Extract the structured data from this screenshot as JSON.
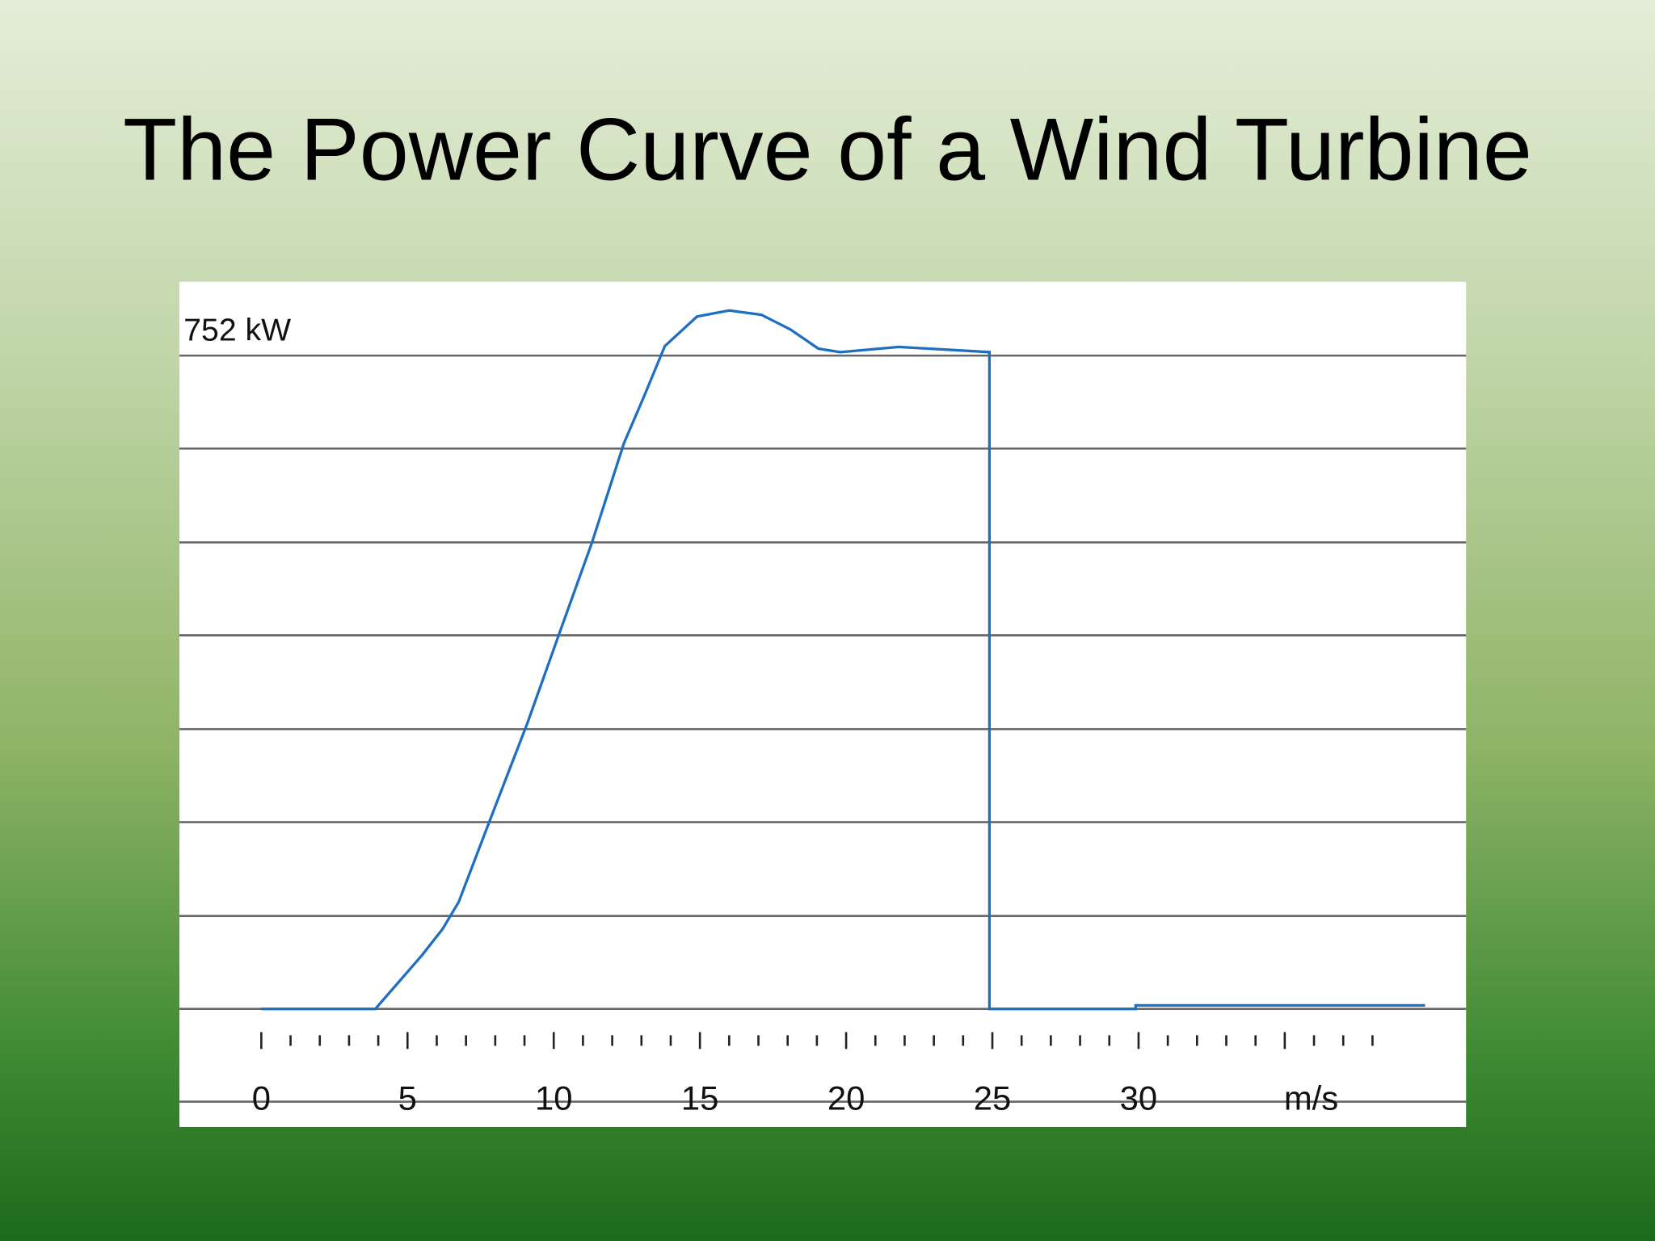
{
  "chart_data": {
    "type": "line",
    "title": "The Power Curve of a Wind Turbine",
    "x": [
      0,
      3.9,
      5.5,
      6.2,
      6.75,
      7.85,
      9.1,
      10.2,
      11.3,
      12.4,
      13.1,
      13.8,
      14.9,
      16,
      17.1,
      18.1,
      19.05,
      19.8,
      21.8,
      24.9,
      24.9,
      29.9,
      29.9,
      39.8
    ],
    "values": [
      0,
      0,
      62,
      92,
      123,
      220,
      329,
      433,
      536,
      651,
      706,
      763,
      797,
      804,
      799,
      782,
      760,
      756,
      762,
      756,
      0,
      0,
      4,
      4
    ],
    "color": "#1f6fc0",
    "xlim": [
      -2.8,
      41.2
    ],
    "ylim": [
      -136,
      837
    ],
    "xticks": [
      0,
      5,
      10,
      15,
      20,
      25,
      30,
      {
        "value": 35,
        "label": "m/s"
      }
    ],
    "xminor_ticks": [
      1,
      2,
      3,
      4,
      6,
      7,
      8,
      9,
      11,
      12,
      13,
      14,
      16,
      17,
      18,
      19,
      21,
      22,
      23,
      24,
      26,
      27,
      28,
      29,
      31,
      32,
      33,
      34,
      36,
      37,
      38
    ],
    "yticks": [
      0,
      107,
      215,
      322,
      430,
      537,
      645,
      {
        "value": 752,
        "label": "752 kW"
      }
    ],
    "grid": true
  }
}
